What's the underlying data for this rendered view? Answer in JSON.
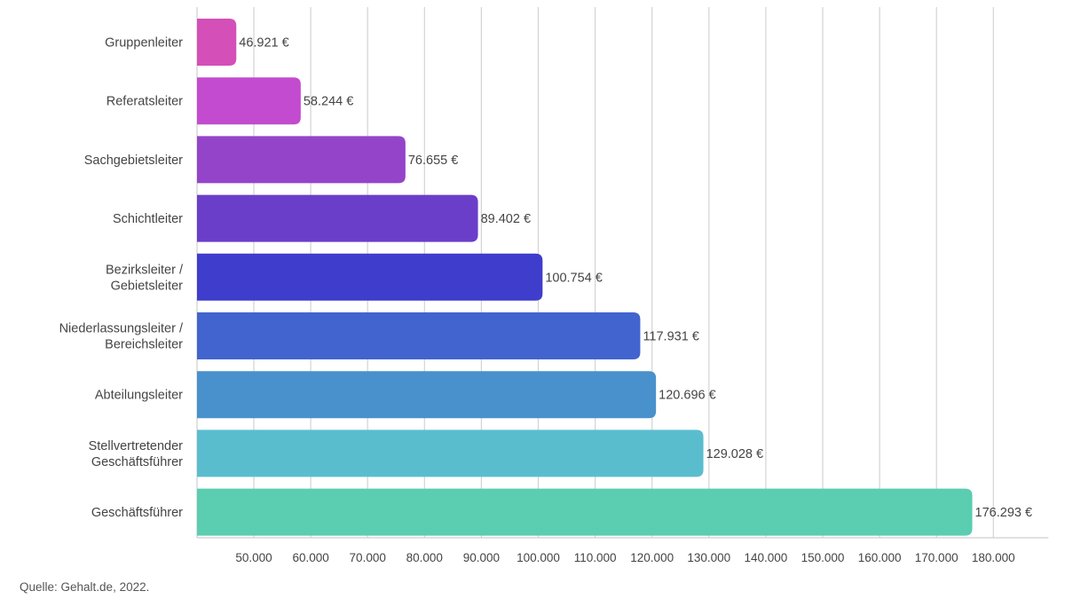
{
  "chart_data": {
    "type": "bar",
    "orientation": "horizontal",
    "categories": [
      [
        "Gruppenleiter"
      ],
      [
        "Referatsleiter"
      ],
      [
        "Sachgebietsleiter"
      ],
      [
        "Schichtleiter"
      ],
      [
        "Bezirksleiter /",
        "Gebietsleiter"
      ],
      [
        "Niederlassungsleiter /",
        "Bereichsleiter"
      ],
      [
        "Abteilungsleiter"
      ],
      [
        "Stellvertretender",
        "Geschäftsführer"
      ],
      [
        "Geschäftsführer"
      ]
    ],
    "values": [
      46921,
      58244,
      76655,
      89402,
      100754,
      117931,
      120696,
      129028,
      176293
    ],
    "value_labels": [
      "46.921 €",
      "58.244 €",
      "76.655 €",
      "89.402 €",
      "100.754 €",
      "117.931 €",
      "120.696 €",
      "129.028 €",
      "176.293 €"
    ],
    "colors": [
      "#d44fb8",
      "#c34bcf",
      "#9444c9",
      "#6a3ec9",
      "#3f3dcb",
      "#4264cf",
      "#4991cc",
      "#5abdce",
      "#5bcdb1"
    ],
    "xlim": [
      40000,
      180000
    ],
    "xticks": [
      50000,
      60000,
      70000,
      80000,
      90000,
      100000,
      110000,
      120000,
      130000,
      140000,
      150000,
      160000,
      170000,
      180000
    ],
    "xtick_labels": [
      "50.000",
      "60.000",
      "70.000",
      "80.000",
      "90.000",
      "100.000",
      "110.000",
      "120.000",
      "130.000",
      "140.000",
      "150.000",
      "160.000",
      "170.000",
      "180.000"
    ],
    "grid": true,
    "title": "",
    "xlabel": "",
    "ylabel": ""
  },
  "source": "Quelle: Gehalt.de, 2022."
}
